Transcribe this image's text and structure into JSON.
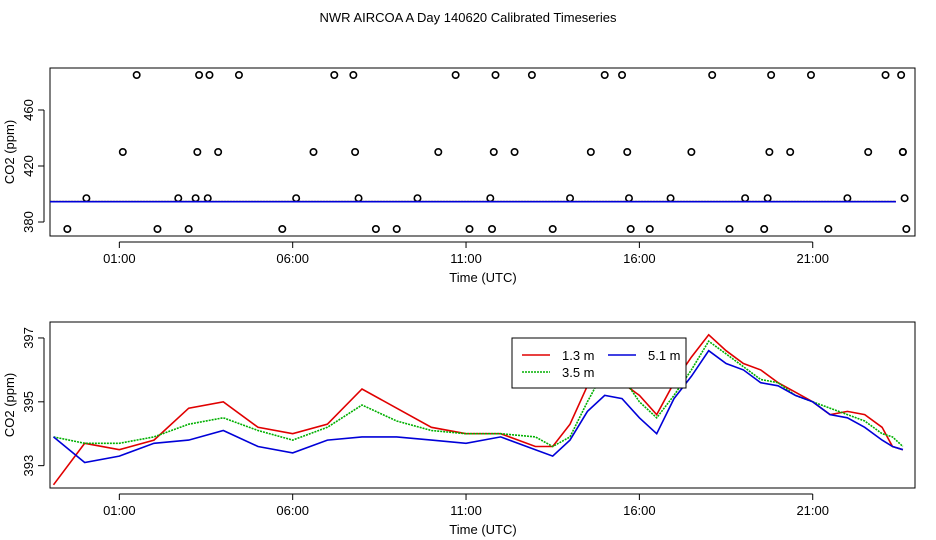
{
  "title": "NWR AIRCOA A  Day 140620  Calibrated Timeseries",
  "colors": {
    "red": "#e00000",
    "green": "#00b000",
    "blue": "#0000d8",
    "black": "#000000"
  },
  "chart_data": [
    {
      "type": "scatter",
      "panel": "top",
      "xlabel": "Time (UTC)",
      "ylabel": "CO2 (ppm)",
      "x_unit": "hours UTC",
      "xlim": [
        -1.0,
        23.95
      ],
      "ylim": [
        370,
        490
      ],
      "x_ticks": [
        1,
        6,
        11,
        16,
        21
      ],
      "x_tick_labels": [
        "01:00",
        "06:00",
        "11:00",
        "16:00",
        "21:00"
      ],
      "y_ticks": [
        380,
        420,
        460
      ],
      "y_tick_labels": [
        "380",
        "420",
        "460"
      ],
      "legend": "none",
      "series": [
        {
          "color": "black",
          "marker": "open-circle",
          "x": [
            -0.5,
            0.05,
            1.1,
            1.5,
            2.1,
            2.7,
            3.0,
            3.2,
            3.25,
            3.3,
            3.55,
            3.6,
            3.85,
            4.45,
            5.7,
            6.1,
            6.6,
            7.2,
            7.75,
            7.8,
            7.9,
            8.4,
            9.0,
            9.6,
            10.2,
            10.7,
            11.1,
            11.7,
            11.75,
            11.8,
            11.85,
            12.4,
            12.9,
            13.5,
            14.0,
            14.6,
            15.0,
            15.5,
            15.65,
            15.7,
            15.75,
            16.3,
            16.9,
            17.5,
            18.1,
            18.6,
            19.05,
            19.6,
            19.7,
            19.75,
            19.8,
            20.35,
            20.95,
            21.45,
            22.0,
            22.6,
            23.1,
            23.55,
            23.6,
            23.6,
            23.65,
            23.7
          ],
          "y": [
            375,
            397,
            430,
            485,
            375,
            397,
            375,
            397,
            430,
            485,
            397,
            485,
            430,
            485,
            375,
            397,
            430,
            485,
            485,
            430,
            397,
            375,
            375,
            397,
            430,
            485,
            375,
            397,
            375,
            430,
            485,
            430,
            485,
            375,
            397,
            430,
            485,
            485,
            430,
            397,
            375,
            375,
            397,
            430,
            485,
            375,
            397,
            375,
            397,
            430,
            485,
            430,
            485,
            375,
            397,
            430,
            485,
            485,
            430,
            430,
            397,
            375
          ]
        },
        {
          "name": "",
          "color": "red",
          "x": [
            -1.0,
            23.4
          ],
          "y": [
            394.5,
            394.5
          ]
        },
        {
          "name": "",
          "color": "green",
          "x": [
            -1.0,
            23.4
          ],
          "y": [
            394.5,
            394.5
          ]
        },
        {
          "name": "",
          "color": "blue",
          "x": [
            -1.0,
            23.4
          ],
          "y": [
            394.5,
            394.5
          ]
        }
      ]
    },
    {
      "type": "line",
      "panel": "bottom",
      "xlabel": "Time (UTC)",
      "ylabel": "CO2 (ppm)",
      "x_unit": "hours UTC",
      "xlim": [
        -1.0,
        23.95
      ],
      "ylim": [
        392.3,
        397.5
      ],
      "x_ticks": [
        1,
        6,
        11,
        16,
        21
      ],
      "x_tick_labels": [
        "01:00",
        "06:00",
        "11:00",
        "16:00",
        "21:00"
      ],
      "y_ticks": [
        393,
        395,
        397
      ],
      "y_tick_labels": [
        "393",
        "395",
        "397"
      ],
      "legend": "inside-top-right",
      "legend_entries": [
        {
          "label": "1.3 m",
          "color": "red"
        },
        {
          "label": "5.1 m",
          "color": "blue"
        },
        {
          "label": "3.5 m",
          "color": "green"
        }
      ],
      "x": [
        -0.9,
        0,
        1,
        2,
        3,
        4,
        5,
        6,
        7,
        8,
        9,
        10,
        11,
        12,
        13,
        13.5,
        14,
        14.5,
        15,
        15.5,
        16,
        16.5,
        17,
        17.5,
        18,
        18.5,
        19,
        19.5,
        20,
        20.5,
        21,
        21.5,
        22,
        22.5,
        23,
        23.3,
        23.6
      ],
      "series": [
        {
          "name": "1.3 m",
          "color": "red",
          "y": [
            392.4,
            393.7,
            393.5,
            393.8,
            394.8,
            395.0,
            394.2,
            394.0,
            394.3,
            395.4,
            394.8,
            394.2,
            394.0,
            394.0,
            393.6,
            393.6,
            394.3,
            395.5,
            396.0,
            395.6,
            395.2,
            394.6,
            395.6,
            396.4,
            397.1,
            396.6,
            396.2,
            396.0,
            395.6,
            395.3,
            395.0,
            394.6,
            394.7,
            394.6,
            394.2,
            393.6,
            393.5
          ]
        },
        {
          "name": "3.5 m",
          "color": "green",
          "y": [
            393.9,
            393.7,
            393.7,
            393.9,
            394.3,
            394.5,
            394.1,
            393.8,
            394.2,
            394.9,
            394.4,
            394.1,
            394.0,
            394.0,
            393.9,
            393.6,
            393.9,
            395.0,
            396.0,
            395.8,
            395.0,
            394.5,
            395.2,
            396.0,
            396.9,
            396.5,
            396.1,
            395.7,
            395.6,
            395.2,
            395.0,
            394.8,
            394.6,
            394.4,
            394.0,
            393.9,
            393.6
          ]
        },
        {
          "name": "5.1 m",
          "color": "blue",
          "y": [
            393.9,
            393.1,
            393.3,
            393.7,
            393.8,
            394.1,
            393.6,
            393.4,
            393.8,
            393.9,
            393.9,
            393.8,
            393.7,
            393.9,
            393.5,
            393.3,
            393.8,
            394.7,
            395.2,
            395.1,
            394.5,
            394.0,
            395.1,
            395.8,
            396.6,
            396.2,
            396.0,
            395.6,
            395.5,
            395.2,
            395.0,
            394.6,
            394.5,
            394.2,
            393.8,
            393.6,
            393.5
          ]
        }
      ]
    }
  ]
}
